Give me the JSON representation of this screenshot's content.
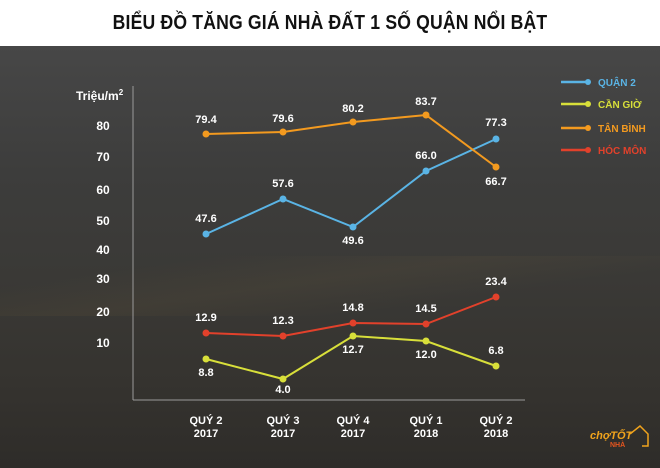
{
  "title": "BIỂU ĐỒ TĂNG GIÁ NHÀ ĐẤT 1 SỐ QUẬN NỔI BẬT",
  "logo": {
    "brand_top": "chợTỐT",
    "brand_bottom": "NHÀ"
  },
  "chart_data": {
    "type": "line",
    "title": "BIỂU ĐỒ TĂNG GIÁ NHÀ ĐẤT 1 SỐ QUẬN NỔI BẬT",
    "xlabel": "",
    "ylabel": "Triệu/m²",
    "categories": [
      "QUÝ 2 2017",
      "QUÝ 3 2017",
      "QUÝ 4 2017",
      "QUÝ 1 2018",
      "QUÝ 2 2018"
    ],
    "category_lines": [
      [
        "QUÝ 2",
        "2017"
      ],
      [
        "QUÝ 3",
        "2017"
      ],
      [
        "QUÝ 4",
        "2017"
      ],
      [
        "QUÝ 1",
        "2018"
      ],
      [
        "QUÝ 2",
        "2018"
      ]
    ],
    "yticks": [
      10,
      20,
      30,
      40,
      50,
      60,
      70,
      80
    ],
    "ylim": [
      0,
      85
    ],
    "grid": false,
    "legend_position": "top-right",
    "series": [
      {
        "name": "QUẬN 2",
        "color": "#5ab4e5",
        "values": [
          47.6,
          57.6,
          49.6,
          66.0,
          77.3
        ],
        "labels": [
          "47.6",
          "57.6",
          "49.6",
          "66.0",
          "77.3"
        ]
      },
      {
        "name": "CẦN GIỜ",
        "color": "#d8df3a",
        "values": [
          8.8,
          4.0,
          12.7,
          12.0,
          6.8
        ],
        "labels": [
          "8.8",
          "4.0",
          "12.7",
          "12.0",
          "6.8"
        ]
      },
      {
        "name": "TÂN BÌNH",
        "color": "#f39a1f",
        "values": [
          79.4,
          79.6,
          80.2,
          83.7,
          66.7
        ],
        "labels": [
          "79.4",
          "79.6",
          "80.2",
          "83.7",
          "66.7"
        ]
      },
      {
        "name": "HÓC MÔN",
        "color": "#e2412b",
        "values": [
          12.9,
          12.3,
          14.8,
          14.5,
          23.4
        ],
        "labels": [
          "12.9",
          "12.3",
          "14.8",
          "14.5",
          "23.4"
        ]
      }
    ]
  }
}
